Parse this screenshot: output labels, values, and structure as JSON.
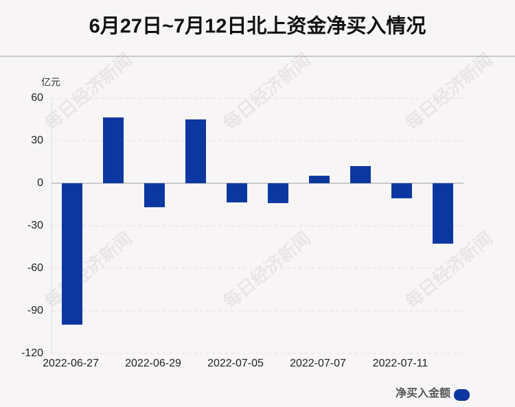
{
  "chart_data": {
    "type": "bar",
    "title": "6月27日~7月12日北上资金净买入情况",
    "y_unit": "亿元",
    "watermark": "每日经济新闻",
    "categories": [
      "2022-06-27",
      null,
      "2022-06-29",
      null,
      "2022-07-05",
      null,
      "2022-07-07",
      null,
      "2022-07-11",
      null
    ],
    "series": [
      {
        "name": "净买入金额",
        "color": "#0d37a0",
        "values": [
          -99.7,
          46.4,
          -16.9,
          45.0,
          -13.5,
          -14.0,
          5.3,
          12.1,
          -10.6,
          -42.6
        ]
      }
    ],
    "ylim": [
      -120,
      60
    ],
    "yticks": [
      -120,
      -90,
      -60,
      -30,
      0,
      30,
      60
    ],
    "grid": true,
    "legend_position": "bottom-right"
  }
}
